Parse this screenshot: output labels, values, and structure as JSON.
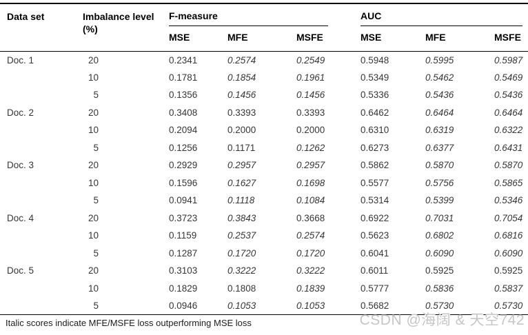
{
  "table": {
    "header": {
      "dataset": "Data set",
      "imbalance": "Imbalance level (%)",
      "group_fmeasure": "F-measure",
      "group_auc": "AUC",
      "subcols": [
        "MSE",
        "MFE",
        "MSFE",
        "MSE",
        "MFE",
        "MSFE"
      ]
    },
    "rows": [
      {
        "dataset": "Doc. 1",
        "level": "20",
        "values": [
          "0.2341",
          "0.2574",
          "0.2549",
          "0.5948",
          "0.5995",
          "0.5987"
        ],
        "italic": [
          false,
          true,
          true,
          false,
          true,
          true
        ]
      },
      {
        "dataset": "",
        "level": "10",
        "values": [
          "0.1781",
          "0.1854",
          "0.1961",
          "0.5349",
          "0.5462",
          "0.5469"
        ],
        "italic": [
          false,
          true,
          true,
          false,
          true,
          true
        ]
      },
      {
        "dataset": "",
        "level": "5",
        "values": [
          "0.1356",
          "0.1456",
          "0.1456",
          "0.5336",
          "0.5436",
          "0.5436"
        ],
        "italic": [
          false,
          true,
          true,
          false,
          true,
          true
        ]
      },
      {
        "dataset": "Doc. 2",
        "level": "20",
        "values": [
          "0.3408",
          "0.3393",
          "0.3393",
          "0.6462",
          "0.6464",
          "0.6464"
        ],
        "italic": [
          false,
          false,
          false,
          false,
          true,
          true
        ]
      },
      {
        "dataset": "",
        "level": "10",
        "values": [
          "0.2094",
          "0.2000",
          "0.2000",
          "0.6310",
          "0.6319",
          "0.6322"
        ],
        "italic": [
          false,
          false,
          false,
          false,
          true,
          true
        ]
      },
      {
        "dataset": "",
        "level": "5",
        "values": [
          "0.1256",
          "0.1171",
          "0.1262",
          "0.6273",
          "0.6377",
          "0.6431"
        ],
        "italic": [
          false,
          false,
          true,
          false,
          true,
          true
        ]
      },
      {
        "dataset": "Doc. 3",
        "level": "20",
        "values": [
          "0.2929",
          "0.2957",
          "0.2957",
          "0.5862",
          "0.5870",
          "0.5870"
        ],
        "italic": [
          false,
          true,
          true,
          false,
          true,
          true
        ]
      },
      {
        "dataset": "",
        "level": "10",
        "values": [
          "0.1596",
          "0.1627",
          "0.1698",
          "0.5577",
          "0.5756",
          "0.5865"
        ],
        "italic": [
          false,
          true,
          true,
          false,
          true,
          true
        ]
      },
      {
        "dataset": "",
        "level": "5",
        "values": [
          "0.0941",
          "0.1118",
          "0.1084",
          "0.5314",
          "0.5399",
          "0.5346"
        ],
        "italic": [
          false,
          true,
          true,
          false,
          true,
          true
        ]
      },
      {
        "dataset": "Doc. 4",
        "level": "20",
        "values": [
          "0.3723",
          "0.3843",
          "0.3668",
          "0.6922",
          "0.7031",
          "0.7054"
        ],
        "italic": [
          false,
          true,
          false,
          false,
          true,
          true
        ]
      },
      {
        "dataset": "",
        "level": "10",
        "values": [
          "0.1159",
          "0.2537",
          "0.2574",
          "0.5623",
          "0.6802",
          "0.6816"
        ],
        "italic": [
          false,
          true,
          true,
          false,
          true,
          true
        ]
      },
      {
        "dataset": "",
        "level": "5",
        "values": [
          "0.1287",
          "0.1720",
          "0.1720",
          "0.6041",
          "0.6090",
          "0.6090"
        ],
        "italic": [
          false,
          true,
          true,
          false,
          true,
          true
        ]
      },
      {
        "dataset": "Doc. 5",
        "level": "20",
        "values": [
          "0.3103",
          "0.3222",
          "0.3222",
          "0.6011",
          "0.5925",
          "0.5925"
        ],
        "italic": [
          false,
          true,
          true,
          false,
          false,
          false
        ]
      },
      {
        "dataset": "",
        "level": "10",
        "values": [
          "0.1829",
          "0.1808",
          "0.1839",
          "0.5777",
          "0.5836",
          "0.5837"
        ],
        "italic": [
          false,
          false,
          true,
          false,
          true,
          true
        ]
      },
      {
        "dataset": "",
        "level": "5",
        "values": [
          "0.0946",
          "0.1053",
          "0.1053",
          "0.5682",
          "0.5730",
          "0.5730"
        ],
        "italic": [
          false,
          true,
          true,
          false,
          true,
          true
        ]
      }
    ]
  },
  "footnote": "Italic scores indicate MFE/MSFE loss outperforming MSE loss",
  "watermark": "CSDN @海阔 & 天空742",
  "colors": {
    "rule": "#000000",
    "text": "#363636",
    "watermark": "#c8c5c5"
  }
}
